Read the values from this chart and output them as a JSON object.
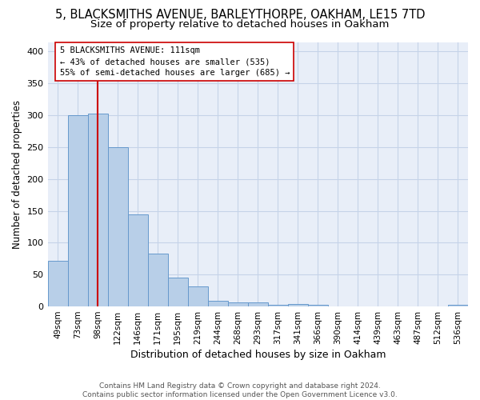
{
  "title_line1": "5, BLACKSMITHS AVENUE, BARLEYTHORPE, OAKHAM, LE15 7TD",
  "title_line2": "Size of property relative to detached houses in Oakham",
  "xlabel": "Distribution of detached houses by size in Oakham",
  "ylabel": "Number of detached properties",
  "footer_line1": "Contains HM Land Registry data © Crown copyright and database right 2024.",
  "footer_line2": "Contains public sector information licensed under the Open Government Licence v3.0.",
  "categories": [
    "49sqm",
    "73sqm",
    "98sqm",
    "122sqm",
    "146sqm",
    "171sqm",
    "195sqm",
    "219sqm",
    "244sqm",
    "268sqm",
    "293sqm",
    "317sqm",
    "341sqm",
    "366sqm",
    "390sqm",
    "414sqm",
    "439sqm",
    "463sqm",
    "487sqm",
    "512sqm",
    "536sqm"
  ],
  "bar_heights": [
    72,
    300,
    303,
    250,
    145,
    83,
    45,
    32,
    9,
    6,
    6,
    2,
    4,
    3,
    0,
    0,
    0,
    0,
    0,
    0,
    3
  ],
  "bar_color": "#b8cfe8",
  "bar_edge_color": "#6699cc",
  "annotation_text": "5 BLACKSMITHS AVENUE: 111sqm\n← 43% of detached houses are smaller (535)\n55% of semi-detached houses are larger (685) →",
  "vline_x": 2.0,
  "vline_color": "#cc0000",
  "grid_color": "#c5d3e8",
  "background_color": "#e8eef8",
  "ylim": [
    0,
    415
  ],
  "yticks": [
    0,
    50,
    100,
    150,
    200,
    250,
    300,
    350,
    400
  ],
  "title_fontsize": 10.5,
  "subtitle_fontsize": 9.5,
  "xlabel_fontsize": 9,
  "ylabel_fontsize": 8.5,
  "tick_fontsize": 8,
  "xtick_fontsize": 7.5,
  "footer_fontsize": 6.5
}
